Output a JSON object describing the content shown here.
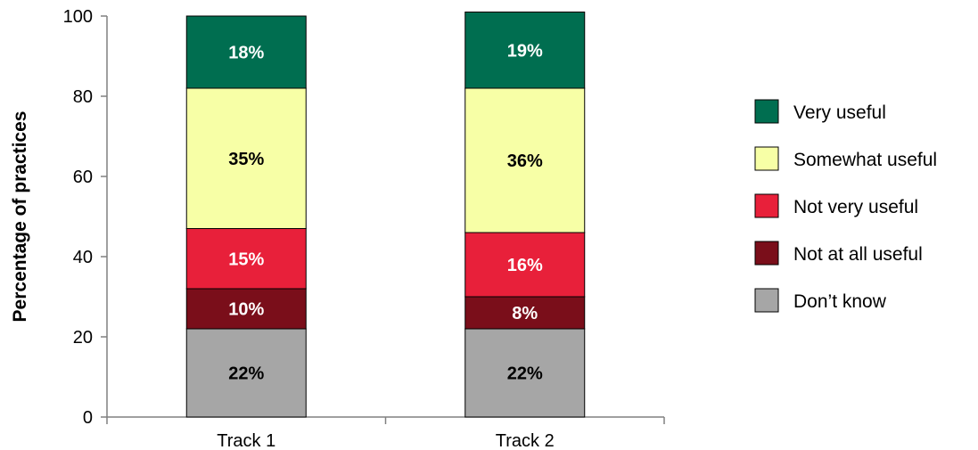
{
  "chart_data": {
    "type": "bar",
    "stacked": true,
    "categories": [
      "Track 1",
      "Track 2"
    ],
    "series": [
      {
        "name": "Don’t know",
        "values": [
          22,
          22
        ],
        "labels": [
          "22%",
          "22%"
        ],
        "color": "#a6a6a6",
        "label_color": "#000000"
      },
      {
        "name": "Not at all useful",
        "values": [
          10,
          8
        ],
        "labels": [
          "10%",
          "8%"
        ],
        "color": "#7a0e1a",
        "label_color": "#ffffff"
      },
      {
        "name": "Not very useful",
        "values": [
          15,
          16
        ],
        "labels": [
          "15%",
          "16%"
        ],
        "color": "#e8203a",
        "label_color": "#ffffff"
      },
      {
        "name": "Somewhat useful",
        "values": [
          35,
          36
        ],
        "labels": [
          "35%",
          "36%"
        ],
        "color": "#f7ffa6",
        "label_color": "#000000"
      },
      {
        "name": "Very useful",
        "values": [
          18,
          19
        ],
        "labels": [
          "18%",
          "19%"
        ],
        "color": "#006e50",
        "label_color": "#ffffff"
      }
    ],
    "legend_order": [
      "Very useful",
      "Somewhat useful",
      "Not very useful",
      "Not at all useful",
      "Don’t know"
    ],
    "legend_position": "right",
    "ylabel": "Percentage of practices",
    "xlabel": "",
    "ylim": [
      0,
      100
    ],
    "yticks": [
      0,
      20,
      40,
      60,
      80,
      100
    ],
    "grid": false
  }
}
